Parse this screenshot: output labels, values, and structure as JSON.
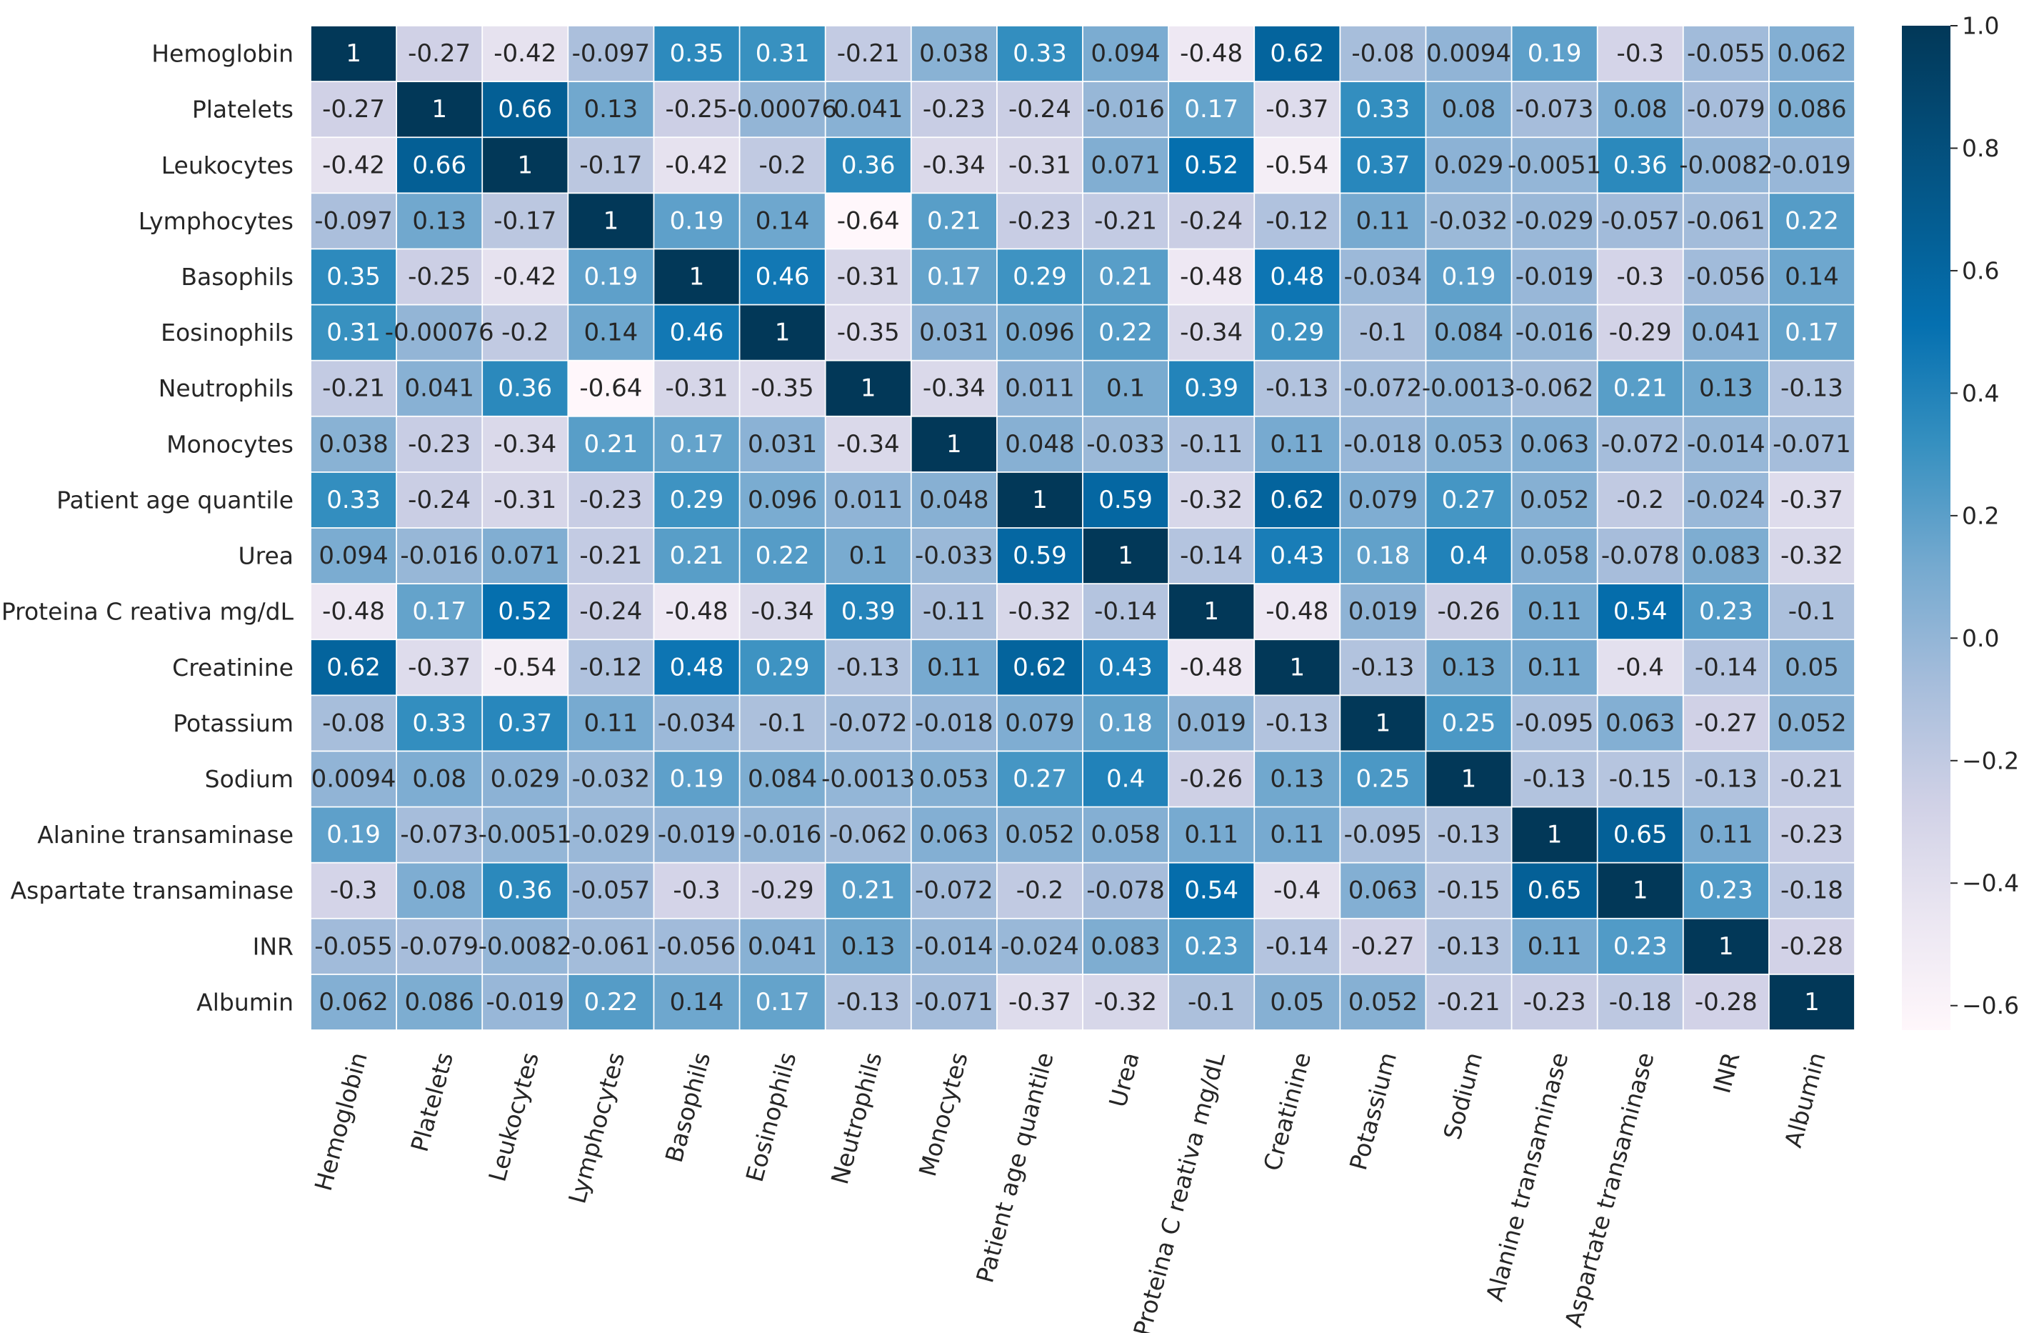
{
  "chart_data": {
    "type": "heatmap",
    "title": "",
    "xlabel": "",
    "ylabel": "",
    "colormap": "PuBu",
    "vmin": -0.64,
    "vmax": 1.0,
    "colorbar_ticks": [
      "1.0",
      "0.8",
      "0.6",
      "0.4",
      "0.2",
      "0.0",
      "−0.2",
      "−0.4",
      "−0.6"
    ],
    "colorbar_tick_values": [
      1.0,
      0.8,
      0.6,
      0.4,
      0.2,
      0.0,
      -0.2,
      -0.4,
      -0.6
    ],
    "labels": [
      "Hemoglobin",
      "Platelets",
      "Leukocytes",
      "Lymphocytes",
      "Basophils",
      "Eosinophils",
      "Neutrophils",
      "Monocytes",
      "Patient age quantile",
      "Urea",
      "Proteina C reativa mg/dL",
      "Creatinine",
      "Potassium",
      "Sodium",
      "Alanine transaminase",
      "Aspartate transaminase",
      "INR",
      "Albumin"
    ],
    "annotations": [
      [
        "1",
        "-0.27",
        "-0.42",
        "-0.097",
        "0.35",
        "0.31",
        "-0.21",
        "0.038",
        "0.33",
        "0.094",
        "-0.48",
        "0.62",
        "-0.08",
        "0.0094",
        "0.19",
        "-0.3",
        "-0.055",
        "0.062"
      ],
      [
        "-0.27",
        "1",
        "0.66",
        "0.13",
        "-0.25",
        "-0.00076",
        "0.041",
        "-0.23",
        "-0.24",
        "-0.016",
        "0.17",
        "-0.37",
        "0.33",
        "0.08",
        "-0.073",
        "0.08",
        "-0.079",
        "0.086"
      ],
      [
        "-0.42",
        "0.66",
        "1",
        "-0.17",
        "-0.42",
        "-0.2",
        "0.36",
        "-0.34",
        "-0.31",
        "0.071",
        "0.52",
        "-0.54",
        "0.37",
        "0.029",
        "-0.0051",
        "0.36",
        "-0.0082",
        "-0.019"
      ],
      [
        "-0.097",
        "0.13",
        "-0.17",
        "1",
        "0.19",
        "0.14",
        "-0.64",
        "0.21",
        "-0.23",
        "-0.21",
        "-0.24",
        "-0.12",
        "0.11",
        "-0.032",
        "-0.029",
        "-0.057",
        "-0.061",
        "0.22"
      ],
      [
        "0.35",
        "-0.25",
        "-0.42",
        "0.19",
        "1",
        "0.46",
        "-0.31",
        "0.17",
        "0.29",
        "0.21",
        "-0.48",
        "0.48",
        "-0.034",
        "0.19",
        "-0.019",
        "-0.3",
        "-0.056",
        "0.14"
      ],
      [
        "0.31",
        "-0.00076",
        "-0.2",
        "0.14",
        "0.46",
        "1",
        "-0.35",
        "0.031",
        "0.096",
        "0.22",
        "-0.34",
        "0.29",
        "-0.1",
        "0.084",
        "-0.016",
        "-0.29",
        "0.041",
        "0.17"
      ],
      [
        "-0.21",
        "0.041",
        "0.36",
        "-0.64",
        "-0.31",
        "-0.35",
        "1",
        "-0.34",
        "0.011",
        "0.1",
        "0.39",
        "-0.13",
        "-0.072",
        "-0.0013",
        "-0.062",
        "0.21",
        "0.13",
        "-0.13"
      ],
      [
        "0.038",
        "-0.23",
        "-0.34",
        "0.21",
        "0.17",
        "0.031",
        "-0.34",
        "1",
        "0.048",
        "-0.033",
        "-0.11",
        "0.11",
        "-0.018",
        "0.053",
        "0.063",
        "-0.072",
        "-0.014",
        "-0.071"
      ],
      [
        "0.33",
        "-0.24",
        "-0.31",
        "-0.23",
        "0.29",
        "0.096",
        "0.011",
        "0.048",
        "1",
        "0.59",
        "-0.32",
        "0.62",
        "0.079",
        "0.27",
        "0.052",
        "-0.2",
        "-0.024",
        "-0.37"
      ],
      [
        "0.094",
        "-0.016",
        "0.071",
        "-0.21",
        "0.21",
        "0.22",
        "0.1",
        "-0.033",
        "0.59",
        "1",
        "-0.14",
        "0.43",
        "0.18",
        "0.4",
        "0.058",
        "-0.078",
        "0.083",
        "-0.32"
      ],
      [
        "-0.48",
        "0.17",
        "0.52",
        "-0.24",
        "-0.48",
        "-0.34",
        "0.39",
        "-0.11",
        "-0.32",
        "-0.14",
        "1",
        "-0.48",
        "0.019",
        "-0.26",
        "0.11",
        "0.54",
        "0.23",
        "-0.1"
      ],
      [
        "0.62",
        "-0.37",
        "-0.54",
        "-0.12",
        "0.48",
        "0.29",
        "-0.13",
        "0.11",
        "0.62",
        "0.43",
        "-0.48",
        "1",
        "-0.13",
        "0.13",
        "0.11",
        "-0.4",
        "-0.14",
        "0.05"
      ],
      [
        "-0.08",
        "0.33",
        "0.37",
        "0.11",
        "-0.034",
        "-0.1",
        "-0.072",
        "-0.018",
        "0.079",
        "0.18",
        "0.019",
        "-0.13",
        "1",
        "0.25",
        "-0.095",
        "0.063",
        "-0.27",
        "0.052"
      ],
      [
        "0.0094",
        "0.08",
        "0.029",
        "-0.032",
        "0.19",
        "0.084",
        "-0.0013",
        "0.053",
        "0.27",
        "0.4",
        "-0.26",
        "0.13",
        "0.25",
        "1",
        "-0.13",
        "-0.15",
        "-0.13",
        "-0.21"
      ],
      [
        "0.19",
        "-0.073",
        "-0.0051",
        "-0.029",
        "-0.019",
        "-0.016",
        "-0.062",
        "0.063",
        "0.052",
        "0.058",
        "0.11",
        "0.11",
        "-0.095",
        "-0.13",
        "1",
        "0.65",
        "0.11",
        "-0.23"
      ],
      [
        "-0.3",
        "0.08",
        "0.36",
        "-0.057",
        "-0.3",
        "-0.29",
        "0.21",
        "-0.072",
        "-0.2",
        "-0.078",
        "0.54",
        "-0.4",
        "0.063",
        "-0.15",
        "0.65",
        "1",
        "0.23",
        "-0.18"
      ],
      [
        "-0.055",
        "-0.079",
        "-0.0082",
        "-0.061",
        "-0.056",
        "0.041",
        "0.13",
        "-0.014",
        "-0.024",
        "0.083",
        "0.23",
        "-0.14",
        "-0.27",
        "-0.13",
        "0.11",
        "0.23",
        "1",
        "-0.28"
      ],
      [
        "0.062",
        "0.086",
        "-0.019",
        "0.22",
        "0.14",
        "0.17",
        "-0.13",
        "-0.071",
        "-0.37",
        "-0.32",
        "-0.1",
        "0.05",
        "0.052",
        "-0.21",
        "-0.23",
        "-0.18",
        "-0.28",
        "1"
      ]
    ]
  }
}
